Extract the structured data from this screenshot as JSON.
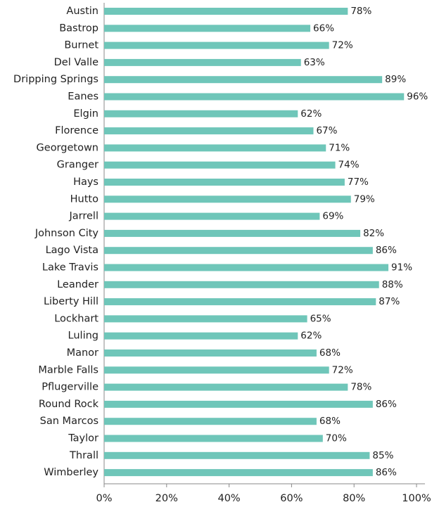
{
  "chart_data": {
    "type": "barh",
    "categories": [
      "Austin",
      "Bastrop",
      "Burnet",
      "Del Valle",
      "Dripping Springs",
      "Eanes",
      "Elgin",
      "Florence",
      "Georgetown",
      "Granger",
      "Hays",
      "Hutto",
      "Jarrell",
      "Johnson City",
      "Lago Vista",
      "Lake Travis",
      "Leander",
      "Liberty Hill",
      "Lockhart",
      "Luling",
      "Manor",
      "Marble Falls",
      "Pflugerville",
      "Round Rock",
      "San Marcos",
      "Taylor",
      "Thrall",
      "Wimberley"
    ],
    "values": [
      78,
      66,
      72,
      63,
      89,
      96,
      62,
      67,
      71,
      74,
      77,
      79,
      69,
      82,
      86,
      91,
      88,
      87,
      65,
      62,
      68,
      72,
      78,
      86,
      68,
      70,
      85,
      86
    ],
    "value_labels": [
      "78%",
      "66%",
      "72%",
      "63%",
      "89%",
      "96%",
      "62%",
      "67%",
      "71%",
      "74%",
      "77%",
      "79%",
      "69%",
      "82%",
      "86%",
      "91%",
      "88%",
      "87%",
      "65%",
      "62%",
      "68%",
      "72%",
      "78%",
      "86%",
      "68%",
      "70%",
      "85%",
      "86%"
    ],
    "color": "#6fc6b9",
    "xlim": [
      0,
      100
    ],
    "xticks": [
      {
        "value": 0,
        "label": "0%"
      },
      {
        "value": 20,
        "label": "20%"
      },
      {
        "value": 40,
        "label": "40%"
      },
      {
        "value": 60,
        "label": "60%"
      },
      {
        "value": 80,
        "label": "80%"
      },
      {
        "value": 100,
        "label": "100%"
      }
    ]
  }
}
